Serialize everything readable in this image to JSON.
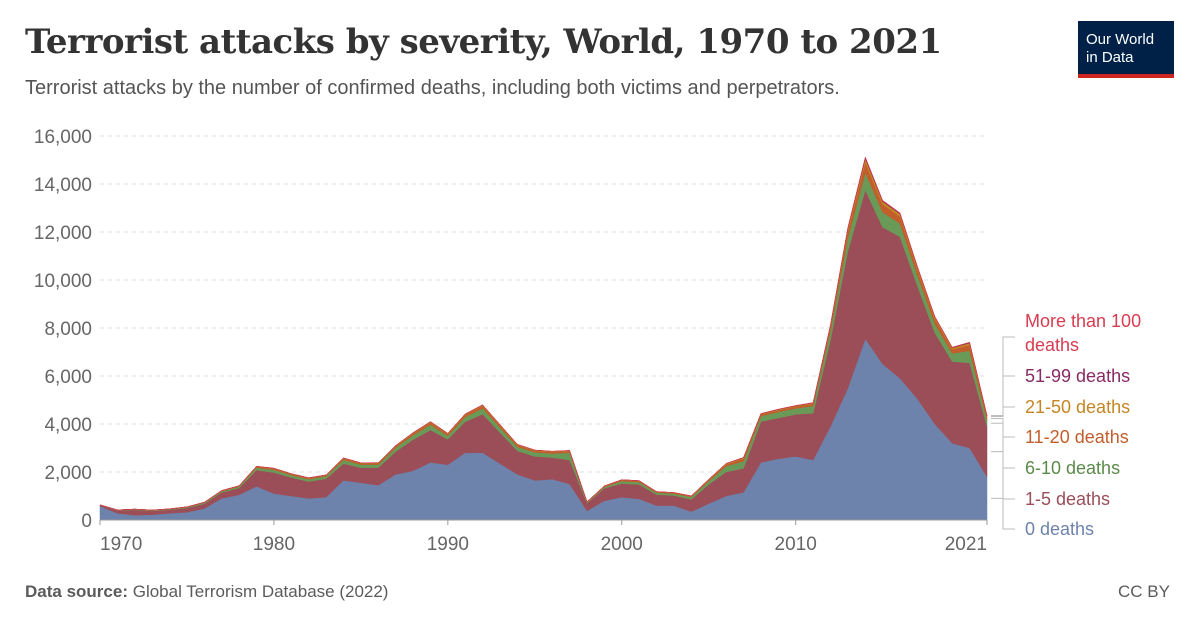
{
  "header": {
    "title": "Terrorist attacks by severity, World, 1970 to 2021",
    "subtitle": "Terrorist attacks by the number of confirmed deaths, including both victims and perpetrators.",
    "logo_line1": "Our World",
    "logo_line2": "in Data"
  },
  "footer": {
    "source_label": "Data source:",
    "source_text": "Global Terrorism Database (2022)",
    "license": "CC BY"
  },
  "chart_data": {
    "type": "area",
    "stacked": true,
    "xlim": [
      1970,
      2021
    ],
    "ylim": [
      0,
      16000
    ],
    "yticks": [
      0,
      2000,
      4000,
      6000,
      8000,
      10000,
      12000,
      14000,
      16000
    ],
    "ytick_labels": [
      "0",
      "2,000",
      "4,000",
      "6,000",
      "8,000",
      "10,000",
      "12,000",
      "14,000",
      "16,000"
    ],
    "xticks": [
      1970,
      1980,
      1990,
      2000,
      2010,
      2021
    ],
    "xtick_labels": [
      "1970",
      "1980",
      "1990",
      "2000",
      "2010",
      "2021"
    ],
    "grid": "horizontal dashed",
    "legend_position": "right",
    "x": [
      1970,
      1971,
      1972,
      1973,
      1974,
      1975,
      1976,
      1977,
      1978,
      1979,
      1980,
      1981,
      1982,
      1983,
      1984,
      1985,
      1986,
      1987,
      1988,
      1989,
      1990,
      1991,
      1992,
      1994,
      1995,
      1996,
      1997,
      1998,
      1999,
      2000,
      2001,
      2002,
      2003,
      2004,
      2005,
      2006,
      2007,
      2008,
      2009,
      2010,
      2011,
      2012,
      2013,
      2014,
      2015,
      2016,
      2017,
      2018,
      2019,
      2020,
      2021
    ],
    "series": [
      {
        "name": "0 deaths",
        "color": "#6d83ac",
        "values": [
          580,
          280,
          200,
          220,
          280,
          320,
          480,
          900,
          1050,
          1400,
          1100,
          1000,
          900,
          950,
          1650,
          1550,
          1450,
          1900,
          2050,
          2400,
          2300,
          2800,
          2800,
          1900,
          1650,
          1700,
          1500,
          380,
          800,
          950,
          880,
          600,
          600,
          350,
          680,
          1000,
          1150,
          2400,
          2550,
          2650,
          2500,
          3900,
          5500,
          7550,
          6500,
          5900,
          5050,
          4000,
          3200,
          3000,
          1800
        ]
      },
      {
        "name": "1-5 deaths",
        "color": "#9b4d58",
        "values": [
          40,
          120,
          220,
          160,
          150,
          180,
          200,
          250,
          280,
          680,
          880,
          770,
          700,
          770,
          700,
          630,
          730,
          950,
          1300,
          1350,
          1060,
          1290,
          1610,
          980,
          1000,
          900,
          1000,
          320,
          520,
          570,
          600,
          460,
          420,
          510,
          800,
          1000,
          1000,
          1700,
          1700,
          1750,
          1950,
          3600,
          5700,
          6200,
          5700,
          5900,
          4700,
          3800,
          3400,
          3550,
          2100
        ]
      },
      {
        "name": "6-10 deaths",
        "color": "#6a9a58",
        "values": [
          5,
          10,
          20,
          20,
          20,
          30,
          40,
          50,
          60,
          100,
          110,
          100,
          100,
          100,
          150,
          130,
          130,
          160,
          180,
          220,
          150,
          200,
          240,
          170,
          170,
          170,
          300,
          30,
          60,
          100,
          100,
          80,
          80,
          100,
          140,
          240,
          300,
          230,
          250,
          250,
          300,
          400,
          560,
          720,
          620,
          550,
          450,
          380,
          340,
          500,
          270
        ]
      },
      {
        "name": "11-20 deaths",
        "color": "#c15e2c",
        "values": [
          5,
          8,
          10,
          10,
          10,
          12,
          15,
          20,
          25,
          40,
          45,
          40,
          40,
          40,
          60,
          50,
          55,
          65,
          75,
          90,
          70,
          90,
          100,
          70,
          65,
          65,
          65,
          20,
          30,
          40,
          40,
          30,
          30,
          30,
          50,
          80,
          110,
          70,
          75,
          80,
          90,
          150,
          280,
          420,
          330,
          290,
          240,
          200,
          170,
          240,
          120
        ]
      },
      {
        "name": "21-50 deaths",
        "color": "#c48622",
        "values": [
          2,
          3,
          4,
          4,
          4,
          5,
          6,
          8,
          10,
          15,
          18,
          15,
          15,
          15,
          20,
          18,
          18,
          22,
          25,
          30,
          25,
          30,
          35,
          25,
          22,
          22,
          25,
          8,
          10,
          14,
          14,
          10,
          10,
          10,
          18,
          28,
          35,
          25,
          28,
          30,
          35,
          60,
          110,
          160,
          120,
          110,
          90,
          75,
          65,
          85,
          45
        ]
      },
      {
        "name": "51-99 deaths",
        "color": "#8a2a64",
        "values": [
          0,
          1,
          1,
          1,
          1,
          1,
          2,
          2,
          3,
          4,
          5,
          4,
          4,
          4,
          6,
          5,
          5,
          6,
          7,
          8,
          6,
          8,
          9,
          6,
          6,
          6,
          7,
          2,
          3,
          4,
          4,
          3,
          3,
          3,
          5,
          8,
          10,
          7,
          8,
          8,
          10,
          18,
          30,
          50,
          35,
          30,
          25,
          20,
          18,
          25,
          12
        ]
      },
      {
        "name": "More than 100 deaths",
        "color": "#d73c50",
        "values": [
          0,
          0,
          0,
          0,
          0,
          0,
          1,
          1,
          1,
          2,
          2,
          2,
          2,
          2,
          3,
          2,
          2,
          3,
          3,
          4,
          3,
          4,
          4,
          3,
          3,
          3,
          3,
          1,
          2,
          2,
          3,
          2,
          2,
          2,
          3,
          4,
          5,
          4,
          4,
          4,
          5,
          8,
          14,
          24,
          16,
          14,
          12,
          10,
          8,
          10,
          6
        ]
      }
    ],
    "legend_order": [
      "More than 100 deaths",
      "51-99 deaths",
      "21-50 deaths",
      "11-20 deaths",
      "6-10 deaths",
      "1-5 deaths",
      "0 deaths"
    ]
  }
}
